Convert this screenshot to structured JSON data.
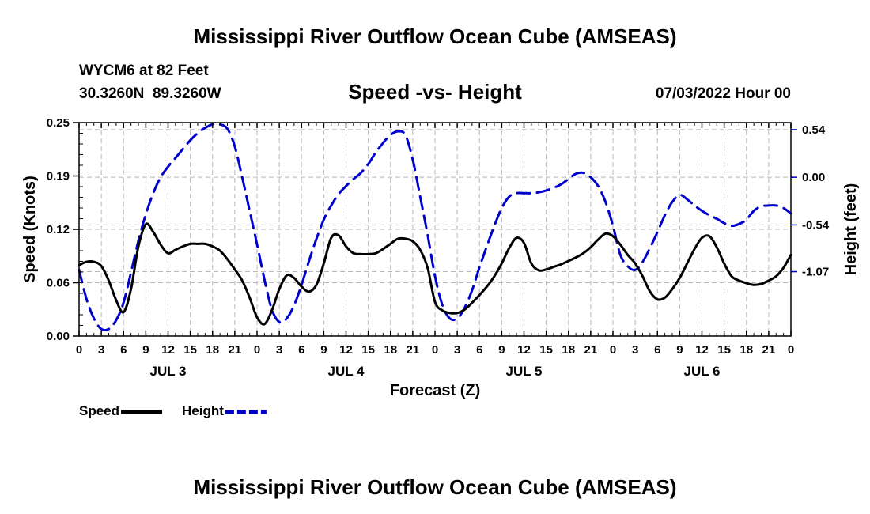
{
  "chart_data": {
    "type": "line",
    "title": "Mississippi River Outflow Ocean Cube (AMSEAS)",
    "footer_title": "Mississippi River Outflow Ocean Cube (AMSEAS)",
    "station": "WYCM6 at 82 Feet",
    "location": "30.3260N  89.3260W",
    "subtitle": "Speed -vs- Height",
    "date": "07/03/2022 Hour 00",
    "xlabel": "Forecast (Z)",
    "ylabel_left": "Speed (Knots)",
    "ylabel_right": "Height (feet)",
    "x_tick_labels": [
      "0",
      "3",
      "6",
      "9",
      "12",
      "15",
      "18",
      "21",
      "0",
      "3",
      "6",
      "9",
      "12",
      "15",
      "18",
      "21",
      "0",
      "3",
      "6",
      "9",
      "12",
      "15",
      "18",
      "21",
      "0",
      "3",
      "6",
      "9",
      "12",
      "15",
      "18",
      "21",
      "0"
    ],
    "day_labels": [
      {
        "label": "JUL 3",
        "center_hour": 12
      },
      {
        "label": "JUL 4",
        "center_hour": 36
      },
      {
        "label": "JUL 5",
        "center_hour": 60
      },
      {
        "label": "JUL 6",
        "center_hour": 84
      }
    ],
    "xlim": [
      0,
      96
    ],
    "ylim_left": [
      0,
      0.25
    ],
    "ylim_right": [
      -1.8,
      0.62
    ],
    "left_ticks": [
      "0.00",
      "0.06",
      "0.12",
      "0.19",
      "0.25"
    ],
    "left_tick_values": [
      0,
      0.0625,
      0.125,
      0.1875,
      0.25
    ],
    "right_ticks": [
      "0.54",
      "0.00",
      "-0.54",
      "-1.07"
    ],
    "right_tick_values": [
      0.54,
      0,
      -0.54,
      -1.07
    ],
    "grid": true,
    "legend_position": "bottom-left",
    "series": [
      {
        "name": "Speed",
        "axis": "left",
        "color": "#000000",
        "style": "solid",
        "x": [
          0,
          1,
          2,
          3,
          4,
          5,
          6,
          7,
          8,
          9,
          10,
          11,
          12,
          13,
          14,
          15,
          16,
          17,
          18,
          19,
          20,
          21,
          22,
          23,
          24,
          25,
          26,
          27,
          28,
          29,
          30,
          31,
          32,
          33,
          34,
          35,
          36,
          37,
          38,
          39,
          40,
          41,
          42,
          43,
          44,
          45,
          46,
          47,
          48,
          49,
          50,
          51,
          52,
          53,
          54,
          55,
          56,
          57,
          58,
          59,
          60,
          61,
          62,
          63,
          64,
          65,
          66,
          67,
          68,
          69,
          70,
          71,
          72,
          73,
          74,
          75,
          76,
          77,
          78,
          79,
          80,
          81,
          82,
          83,
          84,
          85,
          86,
          87,
          88,
          89,
          90,
          91,
          92,
          93,
          94,
          95,
          96
        ],
        "values": [
          0.083,
          0.087,
          0.087,
          0.082,
          0.065,
          0.042,
          0.028,
          0.055,
          0.105,
          0.131,
          0.122,
          0.107,
          0.097,
          0.101,
          0.105,
          0.108,
          0.108,
          0.108,
          0.105,
          0.1,
          0.09,
          0.078,
          0.065,
          0.045,
          0.022,
          0.014,
          0.03,
          0.055,
          0.071,
          0.068,
          0.058,
          0.052,
          0.06,
          0.085,
          0.115,
          0.118,
          0.105,
          0.097,
          0.096,
          0.096,
          0.097,
          0.102,
          0.108,
          0.114,
          0.114,
          0.111,
          0.101,
          0.08,
          0.04,
          0.03,
          0.027,
          0.027,
          0.031,
          0.039,
          0.048,
          0.058,
          0.07,
          0.085,
          0.103,
          0.115,
          0.109,
          0.085,
          0.077,
          0.078,
          0.081,
          0.084,
          0.088,
          0.092,
          0.097,
          0.104,
          0.113,
          0.12,
          0.117,
          0.107,
          0.095,
          0.085,
          0.07,
          0.052,
          0.043,
          0.045,
          0.055,
          0.068,
          0.085,
          0.102,
          0.115,
          0.117,
          0.104,
          0.085,
          0.07,
          0.065,
          0.062,
          0.06,
          0.061,
          0.065,
          0.07,
          0.08,
          0.095
        ]
      },
      {
        "name": "Height",
        "axis": "right",
        "color": "#0000cc",
        "style": "dashed",
        "x": [
          0,
          1,
          2,
          3,
          4,
          5,
          6,
          7,
          8,
          9,
          10,
          11,
          12,
          13,
          14,
          15,
          16,
          17,
          18,
          19,
          20,
          21,
          22,
          23,
          24,
          25,
          26,
          27,
          28,
          29,
          30,
          31,
          32,
          33,
          34,
          35,
          36,
          37,
          38,
          39,
          40,
          41,
          42,
          43,
          44,
          45,
          46,
          47,
          48,
          49,
          50,
          51,
          52,
          53,
          54,
          55,
          56,
          57,
          58,
          59,
          60,
          61,
          62,
          63,
          64,
          65,
          66,
          67,
          68,
          69,
          70,
          71,
          72,
          73,
          74,
          75,
          76,
          77,
          78,
          79,
          80,
          81,
          82,
          83,
          84,
          85,
          86,
          87,
          88,
          89,
          90,
          91,
          92,
          93,
          94,
          95,
          96
        ],
        "values": [
          -1.05,
          -1.38,
          -1.6,
          -1.72,
          -1.72,
          -1.62,
          -1.42,
          -1.08,
          -0.72,
          -0.42,
          -0.18,
          0.0,
          0.12,
          0.22,
          0.32,
          0.42,
          0.5,
          0.56,
          0.6,
          0.6,
          0.55,
          0.35,
          0.0,
          -0.38,
          -0.76,
          -1.16,
          -1.5,
          -1.64,
          -1.6,
          -1.45,
          -1.22,
          -0.95,
          -0.7,
          -0.48,
          -0.32,
          -0.19,
          -0.1,
          -0.02,
          0.05,
          0.15,
          0.28,
          0.39,
          0.48,
          0.52,
          0.48,
          0.2,
          -0.22,
          -0.65,
          -1.12,
          -1.45,
          -1.6,
          -1.6,
          -1.48,
          -1.28,
          -1.02,
          -0.78,
          -0.55,
          -0.35,
          -0.22,
          -0.18,
          -0.18,
          -0.18,
          -0.17,
          -0.15,
          -0.12,
          -0.08,
          -0.02,
          0.04,
          0.05,
          0.0,
          -0.1,
          -0.28,
          -0.55,
          -0.88,
          -1.01,
          -1.05,
          -0.96,
          -0.8,
          -0.62,
          -0.43,
          -0.28,
          -0.2,
          -0.25,
          -0.32,
          -0.38,
          -0.43,
          -0.47,
          -0.52,
          -0.55,
          -0.53,
          -0.48,
          -0.38,
          -0.33,
          -0.32,
          -0.32,
          -0.35,
          -0.41
        ]
      }
    ]
  }
}
